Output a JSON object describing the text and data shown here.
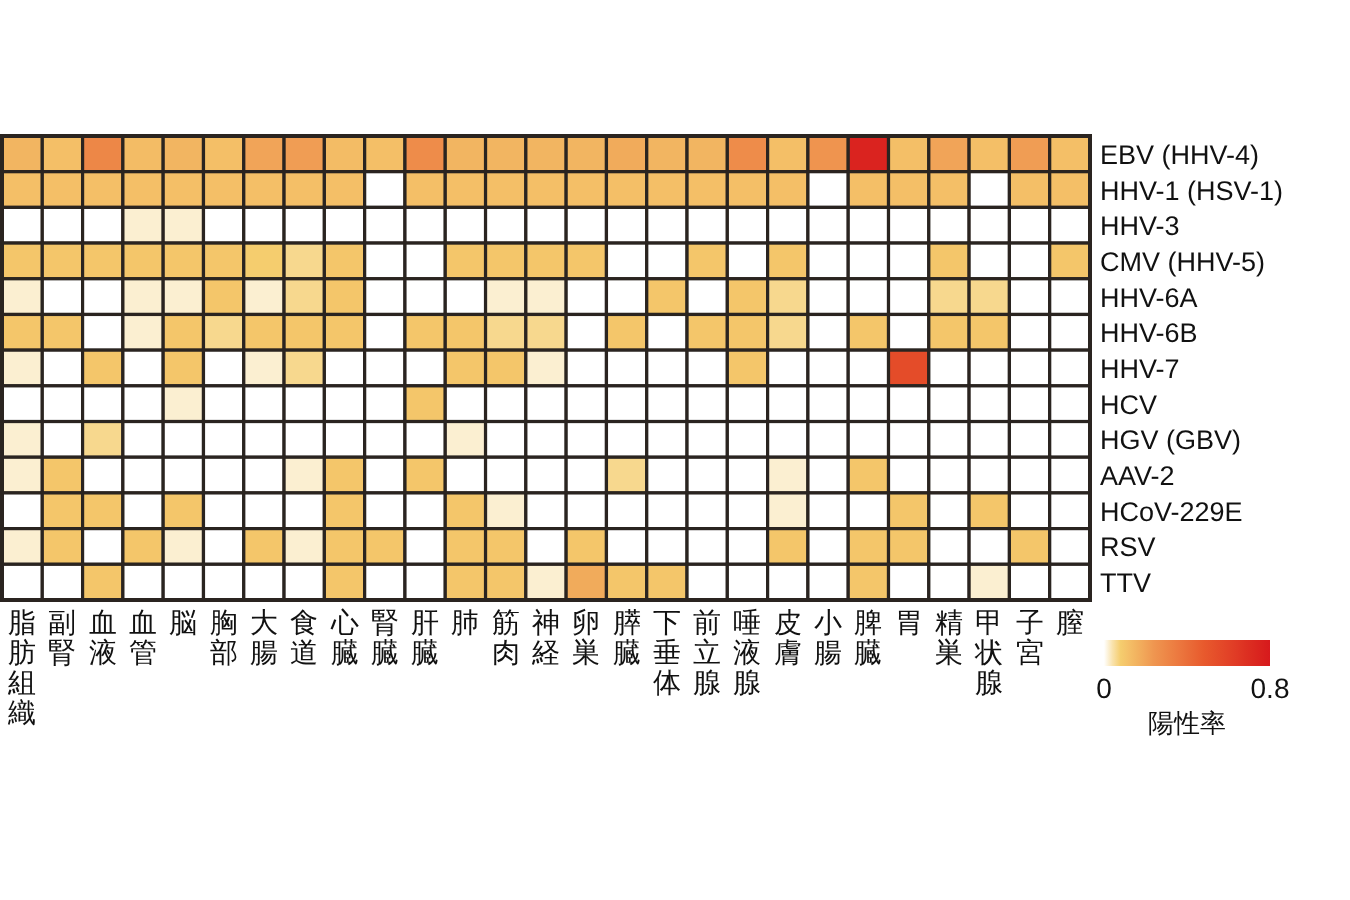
{
  "chart_data": {
    "type": "heatmap",
    "clabel": "陽性率",
    "clim": [
      0,
      0.8
    ],
    "cticks": [
      0,
      0.8
    ],
    "categories": [
      "脂肪組織",
      "副腎",
      "血液",
      "血管",
      "脳",
      "胸部",
      "大腸",
      "食道",
      "心臓",
      "腎臓",
      "肝臓",
      "肺",
      "筋肉",
      "神経",
      "卵巣",
      "膵臓",
      "下垂体",
      "前立腺",
      "唾液腺",
      "皮膚",
      "小腸",
      "脾臓",
      "胃",
      "精巣",
      "甲状腺",
      "子宮",
      "膣"
    ],
    "y_categories": [
      "EBV (HHV-4)",
      "HHV-1 (HSV-1)",
      "HHV-3",
      "CMV (HHV-5)",
      "HHV-6A",
      "HHV-6B",
      "HHV-7",
      "HCV",
      "HGV (GBV)",
      "AAV-2",
      "HCoV-229E",
      "RSV",
      "TTV"
    ],
    "cells": [
      [
        0.15,
        0.12,
        0.3,
        0.13,
        0.15,
        0.12,
        0.2,
        0.22,
        0.13,
        0.12,
        0.28,
        0.15,
        0.15,
        0.15,
        0.15,
        0.18,
        0.15,
        0.15,
        0.28,
        0.12,
        0.25,
        0.75,
        0.12,
        0.2,
        0.12,
        0.22,
        0.12
      ],
      [
        0.12,
        0.12,
        0.12,
        0.12,
        0.12,
        0.12,
        0.12,
        0.12,
        0.12,
        0,
        0.12,
        0.12,
        0.12,
        0.12,
        0.12,
        0.12,
        0.12,
        0.12,
        0.12,
        0.12,
        0,
        0.12,
        0.12,
        0.12,
        0,
        0.12,
        0.12
      ],
      [
        0,
        0,
        0,
        0.02,
        0.02,
        0,
        0,
        0,
        0,
        0,
        0,
        0,
        0,
        0,
        0,
        0,
        0,
        0,
        0,
        0,
        0,
        0,
        0,
        0,
        0,
        0,
        0
      ],
      [
        0.1,
        0.1,
        0.1,
        0.1,
        0.1,
        0.1,
        0.08,
        0.06,
        0.1,
        0,
        0,
        0.1,
        0.1,
        0.1,
        0.1,
        0,
        0,
        0.1,
        0,
        0.1,
        0,
        0,
        0,
        0.1,
        0,
        0,
        0.1
      ],
      [
        0.02,
        0,
        0,
        0.02,
        0.02,
        0.1,
        0.02,
        0.06,
        0.1,
        0,
        0,
        0,
        0.02,
        0.02,
        0,
        0,
        0.1,
        0,
        0.1,
        0.06,
        0,
        0,
        0,
        0.06,
        0.06,
        0,
        0
      ],
      [
        0.1,
        0.1,
        0,
        0.02,
        0.1,
        0.06,
        0.1,
        0.1,
        0.1,
        0,
        0.1,
        0.1,
        0.06,
        0.06,
        0,
        0.1,
        0,
        0.1,
        0.1,
        0.06,
        0,
        0.1,
        0,
        0.1,
        0.1,
        0,
        0
      ],
      [
        0.02,
        0,
        0.1,
        0,
        0.1,
        0,
        0.02,
        0.06,
        0,
        0,
        0,
        0.1,
        0.1,
        0.02,
        0,
        0,
        0,
        0,
        0.1,
        0,
        0,
        0,
        0.55,
        0,
        0,
        0,
        0
      ],
      [
        0,
        0,
        0,
        0,
        0.02,
        0,
        0,
        0,
        0,
        0,
        0.1,
        0,
        0,
        0,
        0,
        0,
        0,
        0,
        0,
        0,
        0,
        0,
        0,
        0,
        0,
        0,
        0
      ],
      [
        0.02,
        0,
        0.06,
        0,
        0,
        0,
        0,
        0,
        0,
        0,
        0,
        0.02,
        0,
        0,
        0,
        0,
        0,
        0,
        0,
        0,
        0,
        0,
        0,
        0,
        0,
        0,
        0
      ],
      [
        0.02,
        0.1,
        0,
        0,
        0,
        0,
        0,
        0.02,
        0.1,
        0,
        0.1,
        0,
        0,
        0,
        0,
        0.06,
        0,
        0,
        0,
        0.02,
        0,
        0.1,
        0,
        0,
        0,
        0,
        0
      ],
      [
        0,
        0.1,
        0.1,
        0,
        0.1,
        0,
        0,
        0,
        0.1,
        0,
        0,
        0.1,
        0.02,
        0,
        0,
        0,
        0,
        0,
        0,
        0.02,
        0,
        0,
        0.1,
        0,
        0.1,
        0,
        0
      ],
      [
        0.02,
        0.1,
        0,
        0.1,
        0.02,
        0,
        0.1,
        0.02,
        0.1,
        0.1,
        0,
        0.1,
        0.1,
        0,
        0.1,
        0,
        0,
        0,
        0,
        0.1,
        0,
        0.1,
        0.1,
        0,
        0,
        0.1,
        0
      ],
      [
        0,
        0,
        0.1,
        0,
        0,
        0,
        0,
        0,
        0.1,
        0,
        0,
        0.1,
        0.1,
        0.02,
        0.18,
        0.1,
        0.1,
        0,
        0,
        0,
        0,
        0.1,
        0,
        0,
        0.02,
        0,
        0
      ]
    ]
  }
}
